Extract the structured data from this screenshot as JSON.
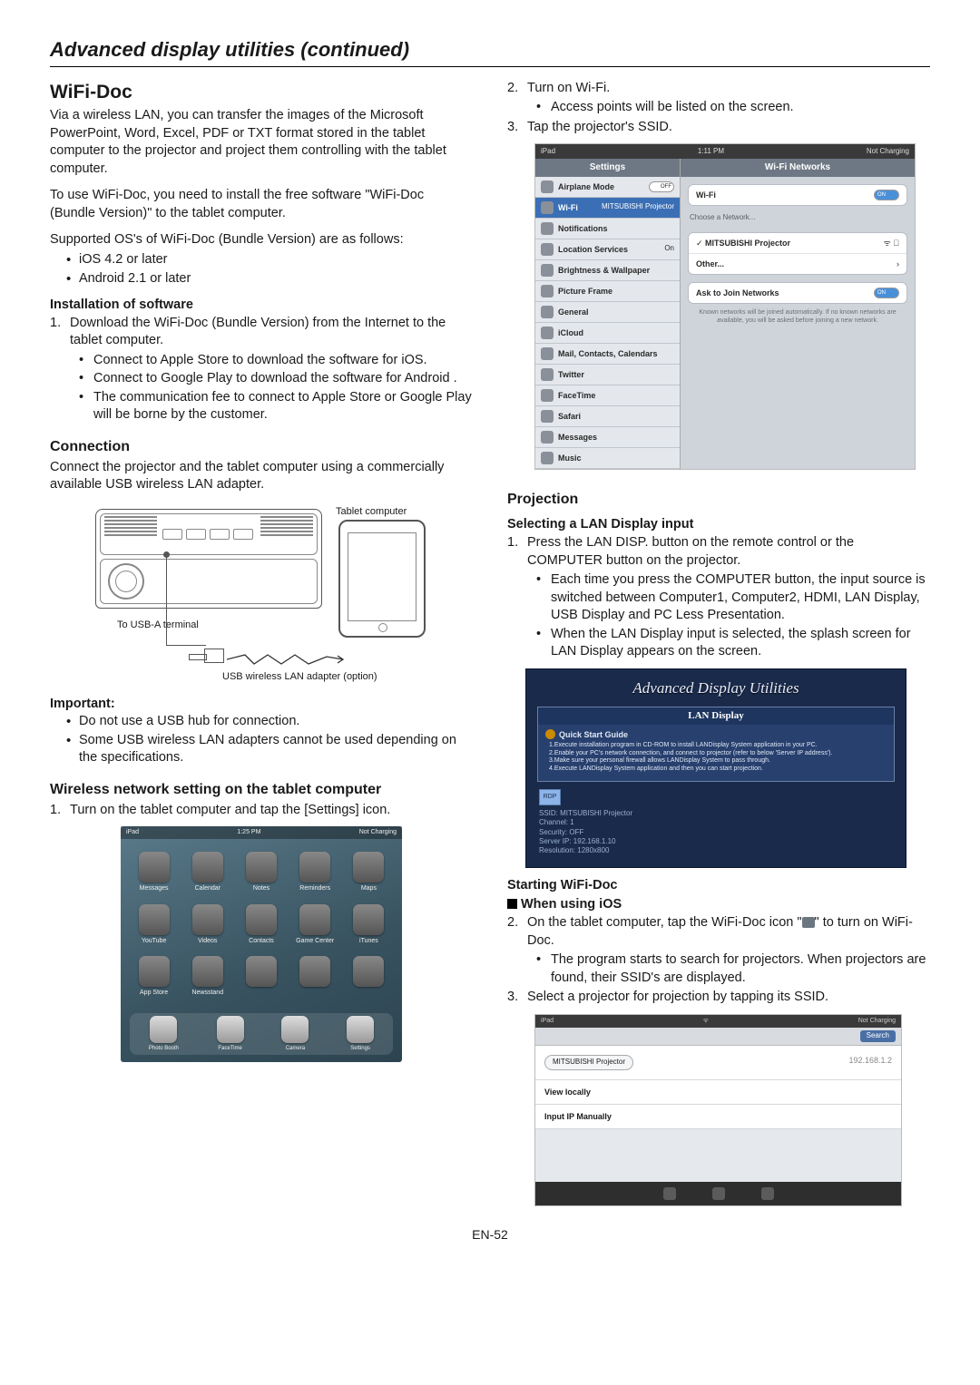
{
  "page_title": "Advanced display utilities (continued)",
  "page_number": "EN-52",
  "left": {
    "h_wifidoc": "WiFi-Doc",
    "intro": "Via a wireless LAN, you can transfer the images of the Microsoft PowerPoint, Word, Excel, PDF or TXT format stored in the tablet computer to the projector and project them controlling with the tablet computer.",
    "use": "To use WiFi-Doc, you need to install the free software \"WiFi-Doc (Bundle Version)\" to the tablet computer.",
    "os_lead": "Supported OS's of WiFi-Doc (Bundle Version) are as follows:",
    "os1": "iOS 4.2 or later",
    "os2": "Android 2.1 or later",
    "inst_h": "Installation of software",
    "inst1": "Download the WiFi-Doc (Bundle Version) from the Internet to the tablet computer.",
    "inst1a": "Connect to Apple Store to download the software for iOS.",
    "inst1b": "Connect to Google Play to download the software for Android .",
    "inst1c": "The communication fee to connect to Apple Store or Google Play will be borne by the customer.",
    "conn_h": "Connection",
    "conn_p": "Connect the projector and the tablet computer using a commercially available USB wireless LAN adapter.",
    "diag_tablet": "Tablet computer",
    "diag_usb": "To USB-A terminal",
    "diag_adapter": "USB wireless LAN adapter (option)",
    "imp_h": "Important:",
    "imp1": "Do not use a USB hub for connection.",
    "imp2": "Some USB wireless LAN adapters cannot be used depending on the specifications.",
    "wnet_h": "Wireless network setting on the tablet computer",
    "wnet1": "Turn on the tablet computer and tap the [Settings] icon.",
    "ipad": {
      "status_l": "iPad",
      "status_c": "1:25 PM",
      "status_r": "Not Charging",
      "apps": [
        "Messages",
        "Calendar",
        "Notes",
        "Reminders",
        "Maps",
        "YouTube",
        "Videos",
        "Contacts",
        "Game Center",
        "iTunes",
        "App Store",
        "Newsstand",
        "",
        "",
        "",
        "",
        "",
        "",
        "",
        ""
      ],
      "dock": [
        "Photo Booth",
        "FaceTime",
        "Camera",
        "Settings"
      ]
    }
  },
  "right": {
    "r1": "Turn on Wi-Fi.",
    "r1a": "Access points will be listed on the screen.",
    "r2": "Tap the projector's SSID.",
    "wifi": {
      "status_l": "iPad",
      "status_c": "1:11 PM",
      "status_r": "Not Charging",
      "side_title": "Settings",
      "main_title": "Wi-Fi Networks",
      "airplane": "Airplane Mode",
      "airplane_v": "OFF",
      "wifi": "Wi-Fi",
      "wifi_v": "MITSUBISHI Projector",
      "notif": "Notifications",
      "loc": "Location Services",
      "loc_v": "On",
      "bright": "Brightness & Wallpaper",
      "pict": "Picture Frame",
      "gen": "General",
      "icloud": "iCloud",
      "mail": "Mail, Contacts, Calendars",
      "tw": "Twitter",
      "ft": "FaceTime",
      "sf": "Safari",
      "msg": "Messages",
      "mus": "Music",
      "wifi_on": "Wi-Fi",
      "on": "ON",
      "choose": "Choose a Network...",
      "proj": "MITSUBISHI Projector",
      "other": "Other...",
      "ask": "Ask to Join Networks",
      "note": "Known networks will be joined automatically. If no known networks are available, you will be asked before joining a new network."
    },
    "proj_h": "Projection",
    "sel_h": "Selecting a LAN Display input",
    "sel1": "Press the LAN DISP. button on the remote control or the COMPUTER button on the projector.",
    "sel1a": "Each time you press the COMPUTER button, the input source is switched between Computer1, Computer2, HDMI, LAN Display, USB Display and PC Less Presentation.",
    "sel1b": "When the LAN Display input is selected, the splash screen for LAN Display appears on the screen.",
    "splash": {
      "title": "Advanced Display Utilities",
      "lan": "LAN Display",
      "q": "Quick Start Guide",
      "s1": "1.Execute installation program in CD-ROM to install LANDisplay System application in your PC.",
      "s2": "2.Enable your PC's network connection, and connect to projector (refer to below 'Server IP address').",
      "s3": "3.Make sure your personal firewall allows LANDisplay System to pass through.",
      "s4": "4.Execute LANDisplay System application and then you can start projection.",
      "info1": "SSID: MITSUBISHI Projector",
      "info2": "Channel: 1",
      "info3": "Security: OFF",
      "info4": "Server IP: 192.168.1.10",
      "info5": "Resolution: 1280x800"
    },
    "start_h": "Starting WiFi-Doc",
    "ios_h": "When using iOS",
    "ios2a": "On the tablet computer, tap the WiFi-Doc icon \"",
    "ios2b": "\" to turn on WiFi-Doc.",
    "ios2s": "The program starts to search for projectors. When projectors are found, their SSID's are displayed.",
    "ios3": "Select a projector for projection by tapping its SSID.",
    "ssid": {
      "status_l": "iPad",
      "status_r": "Not Charging",
      "search": "Search",
      "proj": "MITSUBISHI Projector",
      "ip": "192.168.1.2",
      "view": "View locally",
      "manual": "Input IP Manually"
    }
  }
}
